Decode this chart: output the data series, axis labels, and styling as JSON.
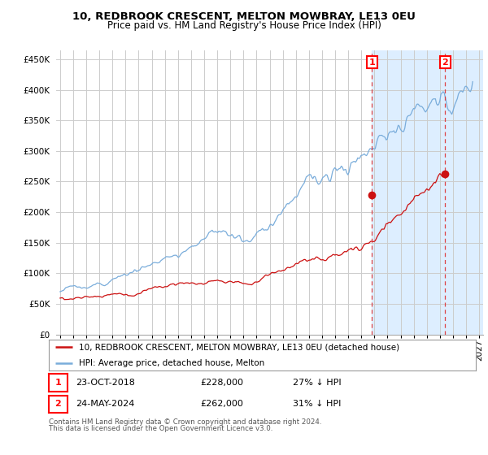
{
  "title": "10, REDBROOK CRESCENT, MELTON MOWBRAY, LE13 0EU",
  "subtitle": "Price paid vs. HM Land Registry's House Price Index (HPI)",
  "ylabel_ticks": [
    "£0",
    "£50K",
    "£100K",
    "£150K",
    "£200K",
    "£250K",
    "£300K",
    "£350K",
    "£400K",
    "£450K"
  ],
  "ytick_values": [
    0,
    50000,
    100000,
    150000,
    200000,
    250000,
    300000,
    350000,
    400000,
    450000
  ],
  "ylim": [
    0,
    465000
  ],
  "xlim_start": 1994.7,
  "xlim_end": 2027.3,
  "bg_color": "#ffffff",
  "grid_color": "#cccccc",
  "hpi_color": "#7aaddb",
  "price_color": "#cc1111",
  "highlight_bg": "#ddeeff",
  "vline_color": "#dd3333",
  "point1_x": 2018.82,
  "point1_y": 228000,
  "point2_x": 2024.4,
  "point2_y": 262000,
  "legend_price_label": "10, REDBROOK CRESCENT, MELTON MOWBRAY, LE13 0EU (detached house)",
  "legend_hpi_label": "HPI: Average price, detached house, Melton",
  "annotation1": "1",
  "annotation2": "2",
  "table_row1": [
    "1",
    "23-OCT-2018",
    "£228,000",
    "27% ↓ HPI"
  ],
  "table_row2": [
    "2",
    "24-MAY-2024",
    "£262,000",
    "31% ↓ HPI"
  ],
  "footer": "Contains HM Land Registry data © Crown copyright and database right 2024.\nThis data is licensed under the Open Government Licence v3.0.",
  "title_fontsize": 9.5,
  "subtitle_fontsize": 8.5,
  "tick_fontsize": 7.5,
  "legend_fontsize": 7.5
}
